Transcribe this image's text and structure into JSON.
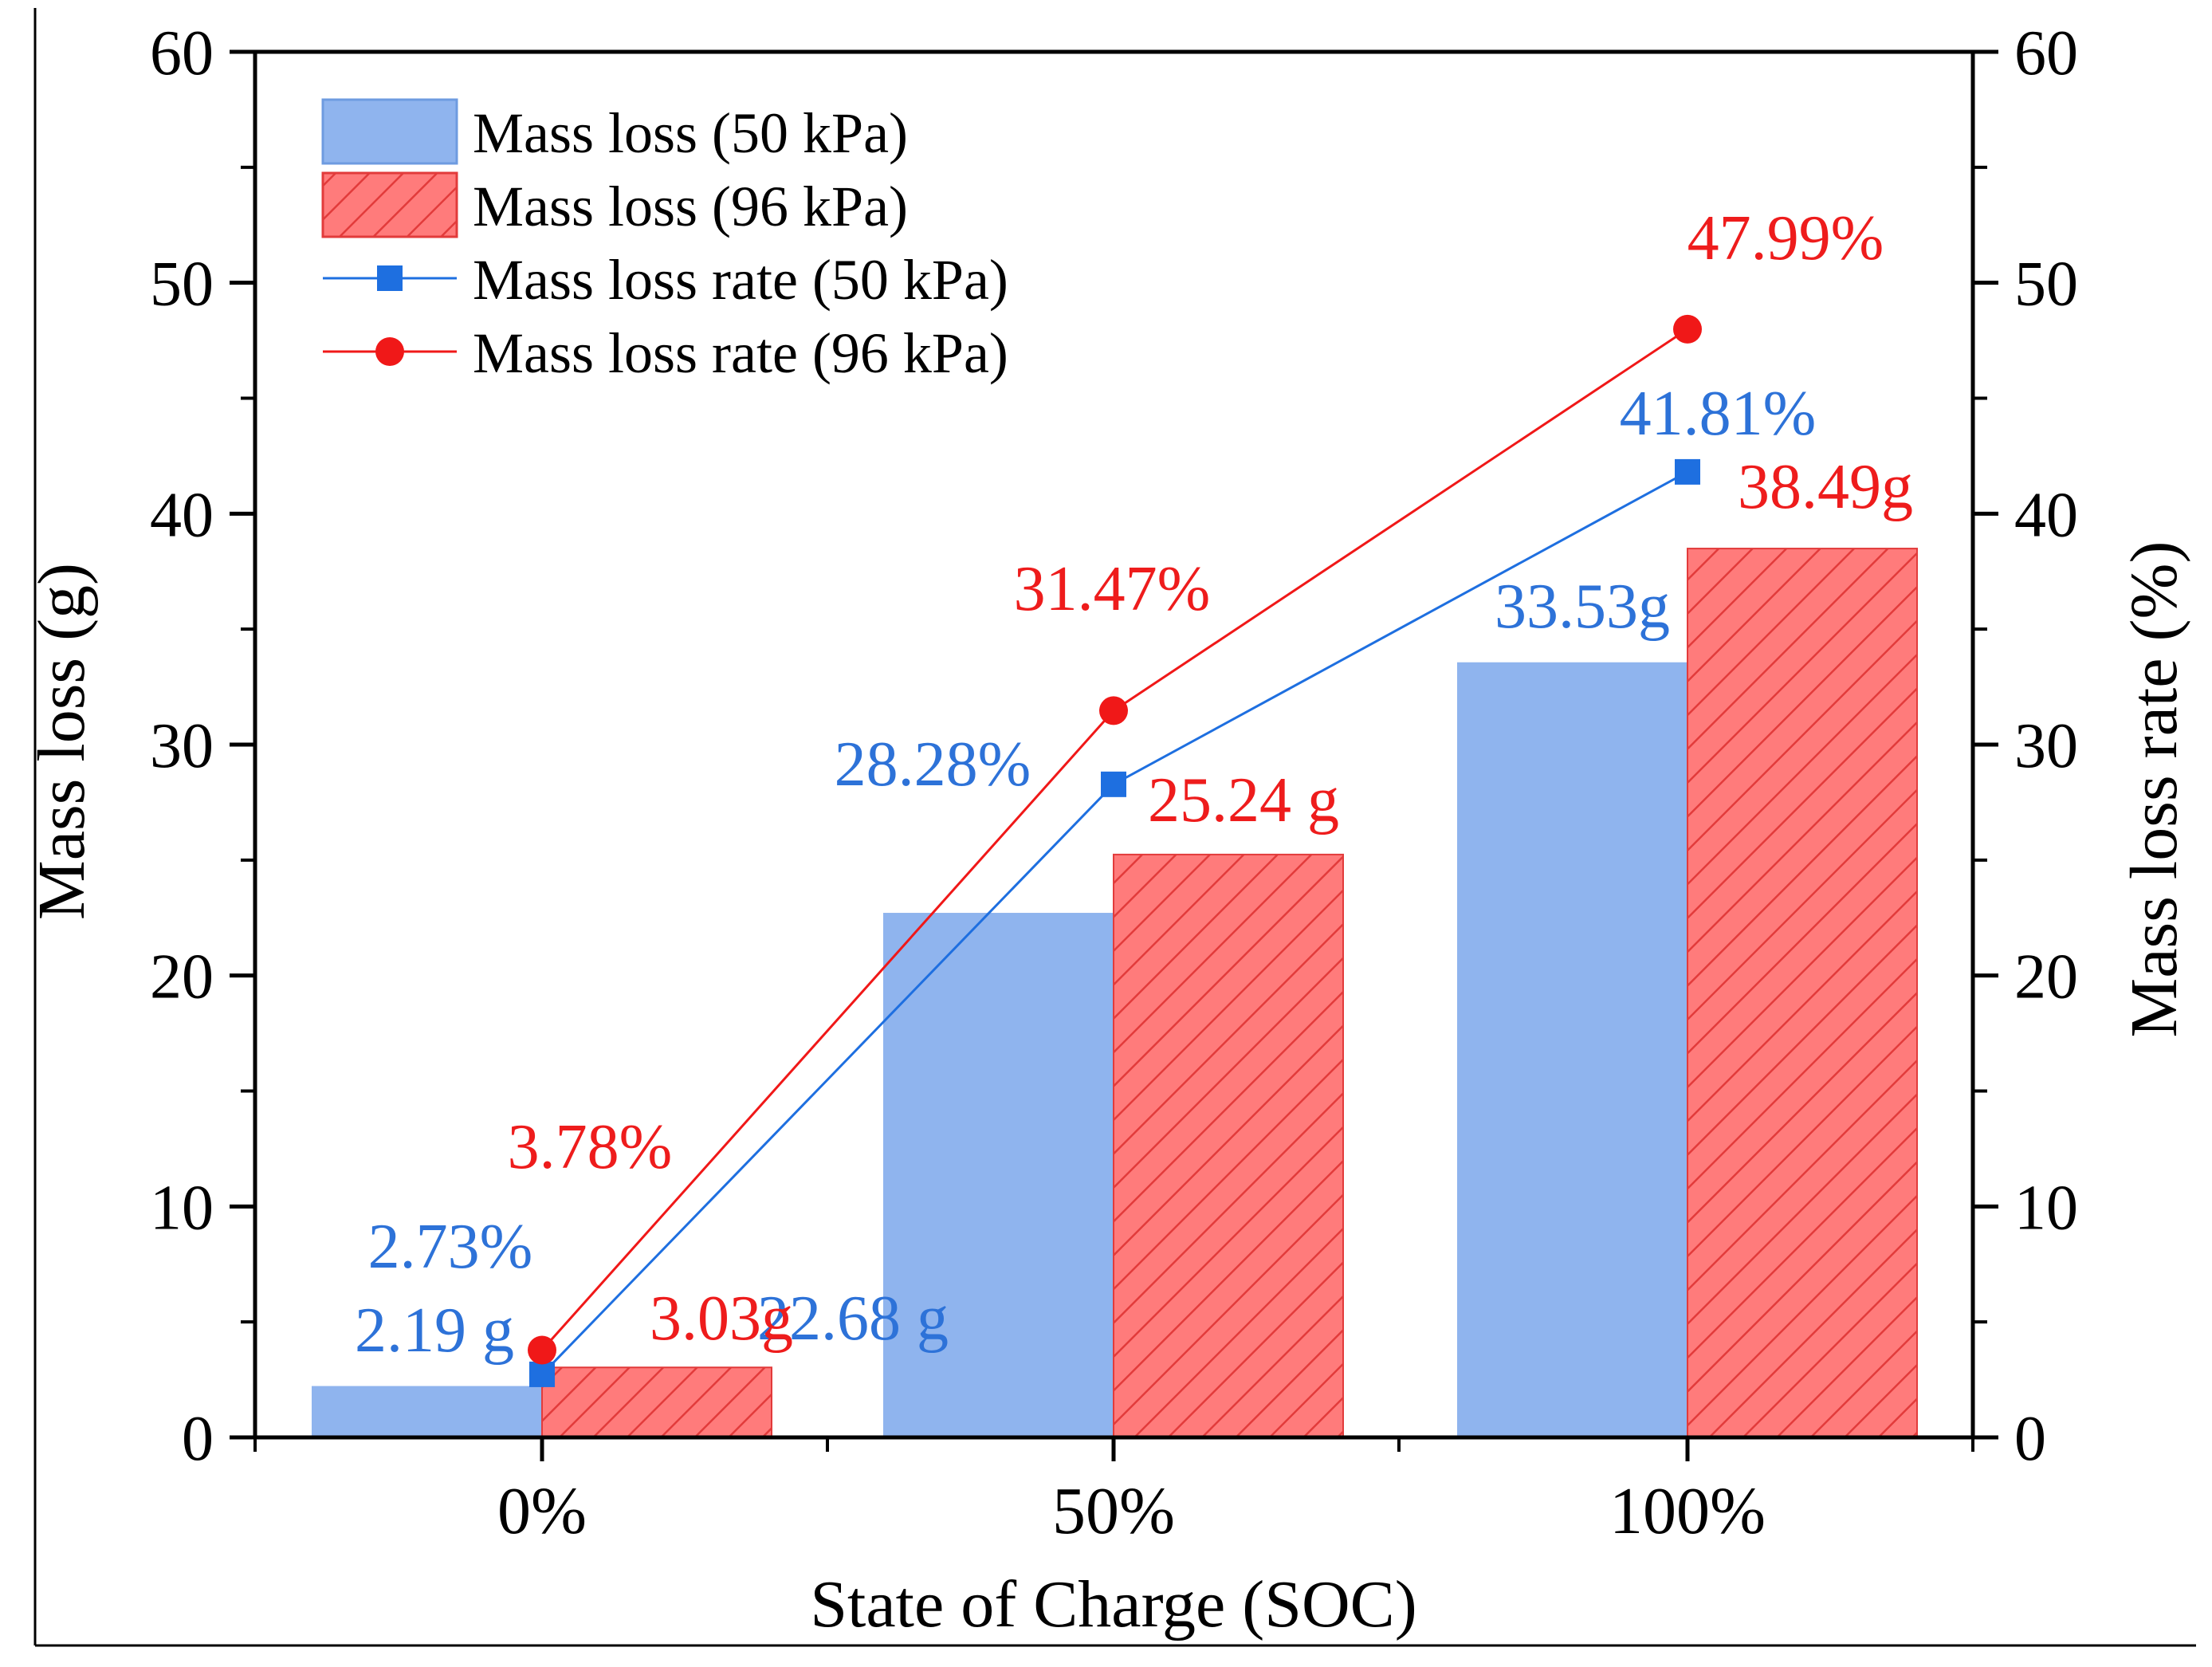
{
  "chart_data": {
    "type": "bar",
    "categories": [
      "0%",
      "50%",
      "100%"
    ],
    "xlabel": "State of Charge (SOC)",
    "ylabel": "Mass loss (g)",
    "y2label": "Mass loss rate (%)",
    "ylim": [
      0,
      60
    ],
    "y2lim": [
      0,
      60
    ],
    "yticks": [
      0,
      10,
      20,
      30,
      40,
      50,
      60
    ],
    "y2ticks": [
      0,
      10,
      20,
      30,
      40,
      50,
      60
    ],
    "legend_position": "top-left",
    "colors": {
      "blue_bar": "#8fb4ee",
      "blue_line": "#1e6fe0",
      "blue_text": "#2d72d8",
      "red_bar": "#ff7b7b",
      "red_hatch": "#e23b3b",
      "red_line": "#f01818",
      "red_text": "#ee1c1c"
    },
    "bar_series": [
      {
        "name": "Mass loss (50 kPa)",
        "values": [
          2.19,
          22.68,
          33.53
        ],
        "labels": [
          "2.19 g",
          "22.68 g",
          "33.53g"
        ],
        "pattern": "solid"
      },
      {
        "name": "Mass loss (96 kPa)",
        "values": [
          3.03,
          25.24,
          38.49
        ],
        "labels": [
          "3.03g",
          "25.24 g",
          "38.49g"
        ],
        "pattern": "hatched"
      }
    ],
    "line_series": [
      {
        "name": "Mass loss rate (50 kPa)",
        "values": [
          2.73,
          28.28,
          41.81
        ],
        "labels": [
          "2.73%",
          "28.28%",
          "41.81%"
        ],
        "marker": "square",
        "axis": "right"
      },
      {
        "name": "Mass loss rate (96 kPa)",
        "values": [
          3.78,
          31.47,
          47.99
        ],
        "labels": [
          "3.78%",
          "31.47%",
          "47.99%"
        ],
        "marker": "circle",
        "axis": "right"
      }
    ]
  }
}
